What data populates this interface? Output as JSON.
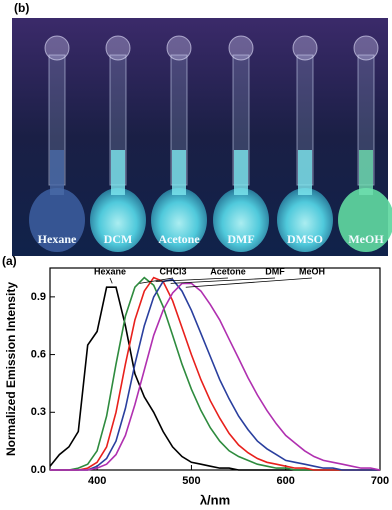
{
  "photo": {
    "panel_label": "(b)",
    "labels": [
      "Hexane",
      "DCM",
      "Acetone",
      "DMF",
      "DMSO",
      "MeOH"
    ]
  },
  "chart_data": {
    "type": "line",
    "panel_label": "(a)",
    "x_label": "λ/nm",
    "y_label": "Normalized Emission Intensity",
    "xlim": [
      350,
      700
    ],
    "xticks": [
      400,
      500,
      600,
      700
    ],
    "ylim": [
      0,
      1.05
    ],
    "yticks": [
      {
        "value": 0,
        "label": "0.0"
      },
      0.3,
      0.6,
      0.9
    ],
    "x": [
      350,
      360,
      370,
      380,
      390,
      400,
      410,
      420,
      430,
      440,
      450,
      460,
      470,
      480,
      490,
      500,
      510,
      520,
      530,
      540,
      550,
      560,
      570,
      580,
      590,
      600,
      610,
      620,
      630,
      640,
      650,
      660,
      670,
      680,
      690,
      700
    ],
    "series": [
      {
        "name": "Hexane",
        "color": "#000000",
        "values": [
          0.02,
          0.08,
          0.12,
          0.2,
          0.65,
          0.72,
          0.95,
          0.95,
          0.75,
          0.5,
          0.38,
          0.3,
          0.2,
          0.12,
          0.07,
          0.04,
          0.03,
          0.02,
          0.01,
          0.01,
          0,
          0,
          0,
          0,
          0,
          0,
          0,
          0,
          0,
          0,
          0,
          0,
          0,
          0,
          0,
          0
        ]
      },
      {
        "name": "CHCl3",
        "color": "#2e8b3e",
        "values": [
          0,
          0,
          0,
          0.01,
          0.03,
          0.1,
          0.28,
          0.55,
          0.8,
          0.95,
          1.0,
          0.96,
          0.85,
          0.7,
          0.55,
          0.42,
          0.31,
          0.22,
          0.15,
          0.1,
          0.07,
          0.05,
          0.03,
          0.02,
          0.01,
          0.01,
          0,
          0,
          0,
          0,
          0,
          0,
          0,
          0,
          0,
          0
        ]
      },
      {
        "name": "Acetone",
        "color": "#e8201c",
        "values": [
          0,
          0,
          0,
          0,
          0.01,
          0.04,
          0.12,
          0.3,
          0.55,
          0.78,
          0.93,
          1.0,
          0.98,
          0.88,
          0.74,
          0.6,
          0.47,
          0.36,
          0.27,
          0.19,
          0.13,
          0.09,
          0.06,
          0.04,
          0.03,
          0.02,
          0.01,
          0.01,
          0,
          0,
          0,
          0,
          0,
          0,
          0,
          0
        ]
      },
      {
        "name": "DMF",
        "color": "#2a3f9e",
        "values": [
          0,
          0,
          0,
          0,
          0,
          0.02,
          0.06,
          0.15,
          0.32,
          0.55,
          0.75,
          0.9,
          0.98,
          0.99,
          0.93,
          0.83,
          0.71,
          0.59,
          0.47,
          0.37,
          0.28,
          0.21,
          0.15,
          0.11,
          0.08,
          0.05,
          0.04,
          0.03,
          0.02,
          0.01,
          0.01,
          0,
          0,
          0,
          0,
          0
        ]
      },
      {
        "name": "MeOH",
        "color": "#b030b0",
        "values": [
          0,
          0,
          0,
          0,
          0,
          0.01,
          0.03,
          0.08,
          0.18,
          0.34,
          0.52,
          0.7,
          0.83,
          0.92,
          0.97,
          0.97,
          0.93,
          0.86,
          0.78,
          0.68,
          0.58,
          0.48,
          0.39,
          0.31,
          0.24,
          0.18,
          0.14,
          0.1,
          0.07,
          0.05,
          0.04,
          0.03,
          0.02,
          0.01,
          0.01,
          0
        ]
      }
    ]
  }
}
